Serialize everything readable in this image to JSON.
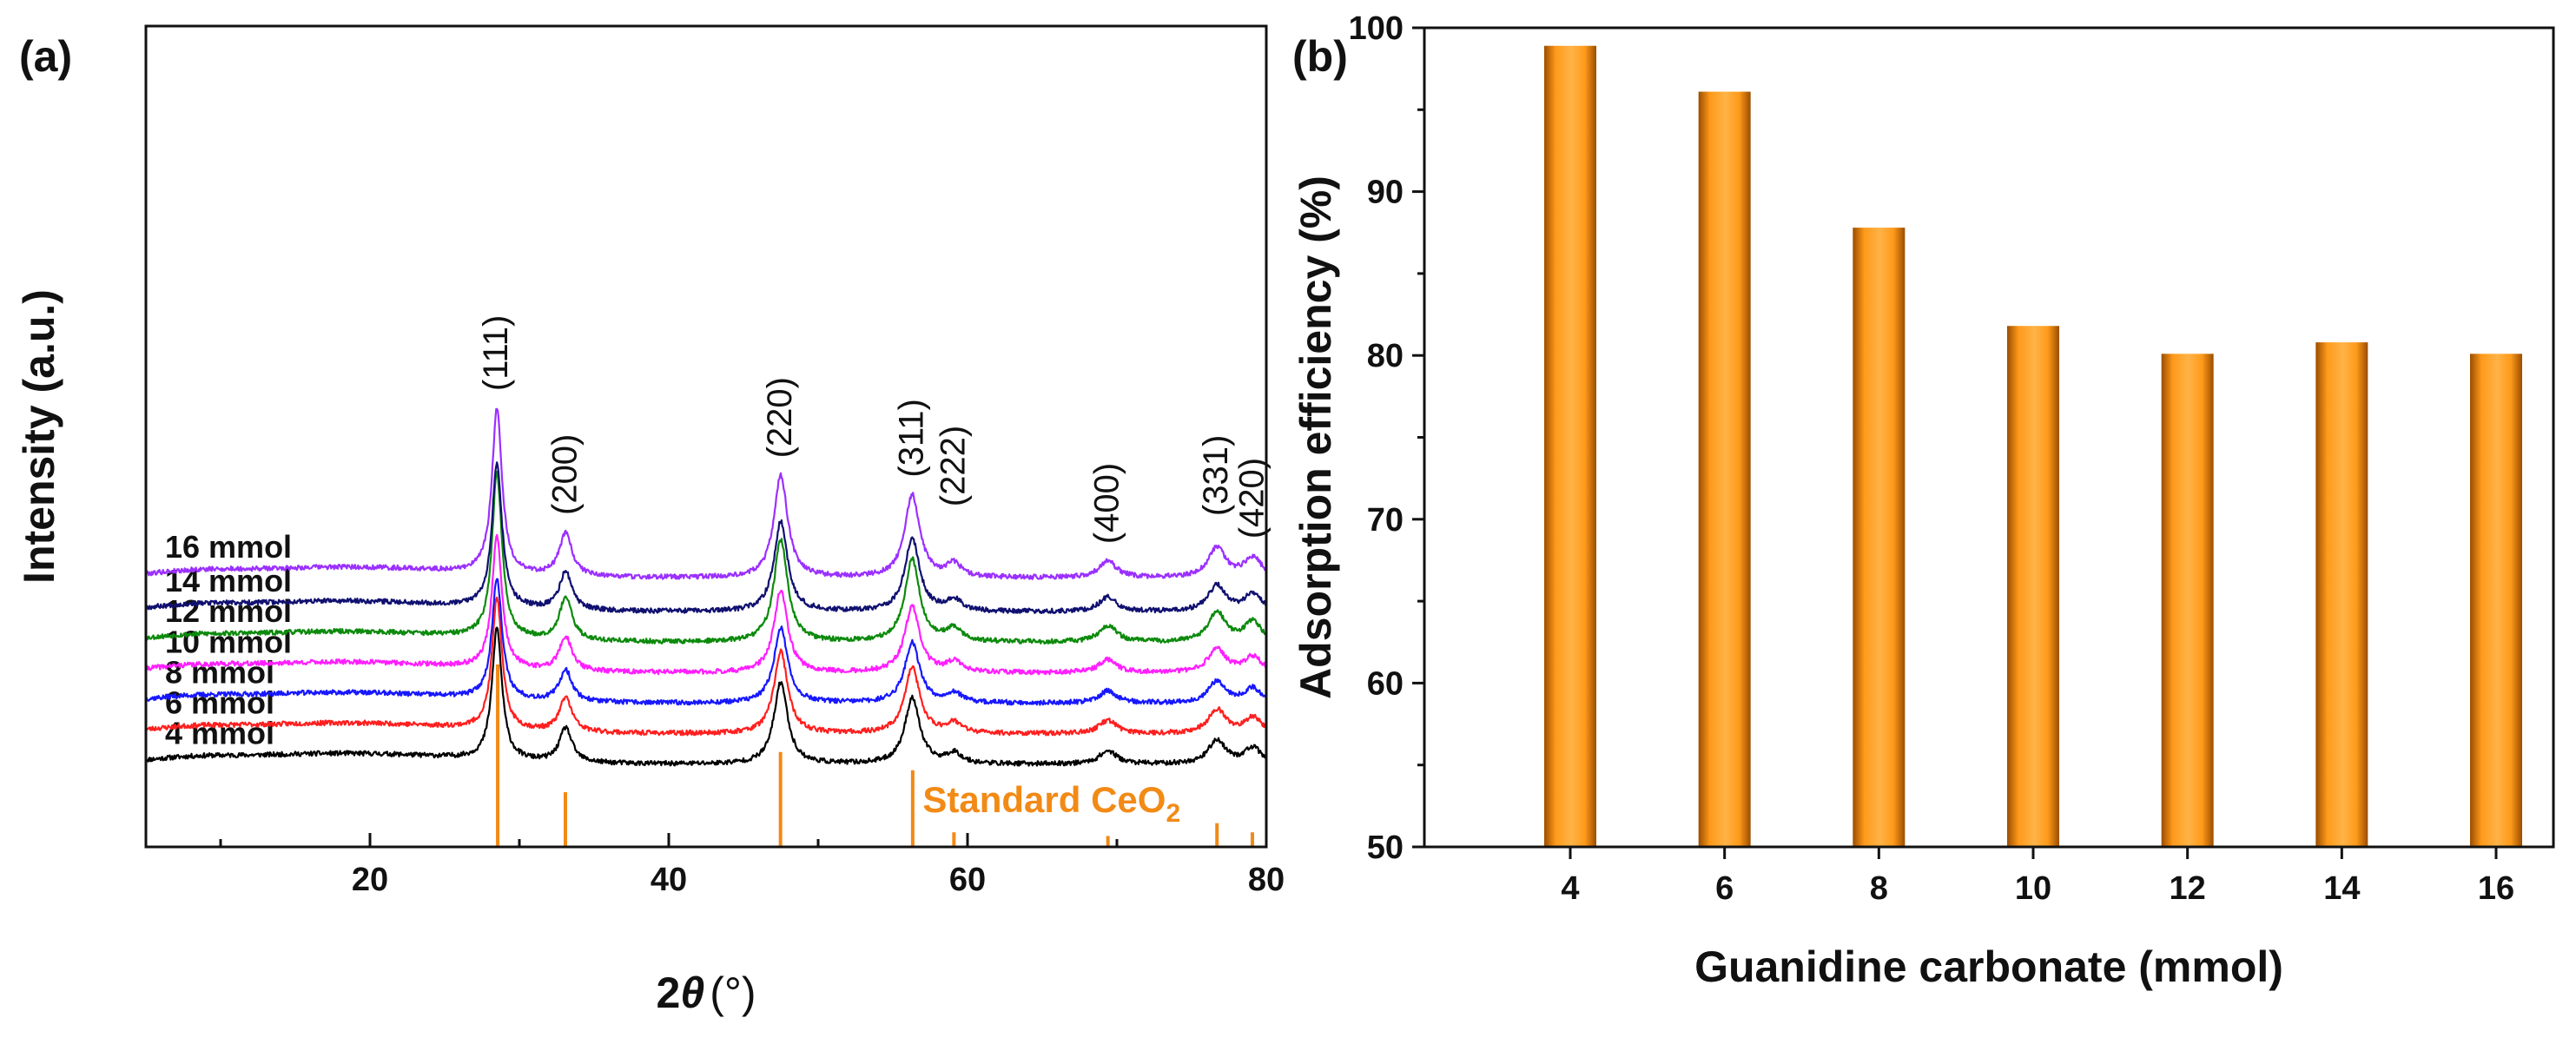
{
  "colors": {
    "axis": "#111111",
    "standard": "#f28a16",
    "bar_edge": "#9a4d00",
    "bar_mid": "#ff9a1a"
  },
  "chart_data": [
    {
      "panel": "(a)",
      "type": "line",
      "xlabel_main": "2",
      "xlabel_theta": "θ",
      "xlabel_unit": "(°)",
      "ylabel": "Intensity (a.u.)",
      "xlim": [
        5,
        80
      ],
      "x_major_ticks": [
        20,
        40,
        60,
        80
      ],
      "x_minor_ticks": [
        10,
        30,
        50,
        70
      ],
      "y_ticks_shown": false,
      "series": [
        {
          "name": "4 mmol",
          "label": "4 mmol",
          "color": "#000000",
          "baseline": 0,
          "scale": 1.0,
          "seed": 11
        },
        {
          "name": "6 mmol",
          "label": "6 mmol",
          "color": "#ff1f1f",
          "baseline": 0.45,
          "scale": 1.0,
          "seed": 23
        },
        {
          "name": "8 mmol",
          "label": "8 mmol",
          "color": "#1717ff",
          "baseline": 0.9,
          "scale": 0.92,
          "seed": 37
        },
        {
          "name": "10 mmol",
          "label": "10 mmol",
          "color": "#ff1fff",
          "baseline": 1.35,
          "scale": 1.0,
          "seed": 41
        },
        {
          "name": "12 mmol",
          "label": "12 mmol",
          "color": "#0c8a0c",
          "baseline": 1.8,
          "scale": 1.25,
          "seed": 53
        },
        {
          "name": "14 mmol",
          "label": "14 mmol",
          "color": "#101070",
          "baseline": 2.25,
          "scale": 1.1,
          "seed": 67
        },
        {
          "name": "16 mmol",
          "label": "16 mmol",
          "color": "#9b30ff",
          "baseline": 2.75,
          "scale": 1.25,
          "seed": 79
        }
      ],
      "peaks": [
        {
          "hkl": "(111)",
          "two_theta": 28.5,
          "height": 1.0,
          "width": 0.4
        },
        {
          "hkl": "(200)",
          "two_theta": 33.1,
          "height": 0.26,
          "width": 0.5
        },
        {
          "hkl": "(220)",
          "two_theta": 47.5,
          "height": 0.62,
          "width": 0.55
        },
        {
          "hkl": "(311)",
          "two_theta": 56.3,
          "height": 0.5,
          "width": 0.6
        },
        {
          "hkl": "(222)",
          "two_theta": 59.1,
          "height": 0.08,
          "width": 0.6
        },
        {
          "hkl": "(400)",
          "two_theta": 69.4,
          "height": 0.1,
          "width": 0.7
        },
        {
          "hkl": "(331)",
          "two_theta": 76.7,
          "height": 0.18,
          "width": 0.7
        },
        {
          "hkl": "(420)",
          "two_theta": 79.1,
          "height": 0.12,
          "width": 0.7
        }
      ],
      "standard_label_main": "Standard CeO",
      "standard_label_sub": "2",
      "standard_lines": [
        {
          "two_theta": 28.55,
          "intensity": 1.0
        },
        {
          "two_theta": 33.08,
          "intensity": 0.3
        },
        {
          "two_theta": 47.48,
          "intensity": 0.52
        },
        {
          "two_theta": 56.33,
          "intensity": 0.42
        },
        {
          "two_theta": 59.09,
          "intensity": 0.08
        },
        {
          "two_theta": 69.4,
          "intensity": 0.06
        },
        {
          "two_theta": 76.7,
          "intensity": 0.13
        },
        {
          "two_theta": 79.07,
          "intensity": 0.08
        }
      ]
    },
    {
      "panel": "(b)",
      "type": "bar",
      "xlabel": "Guanidine carbonate (mmol)",
      "ylabel": "Adsorption efficiency (%)",
      "categories": [
        "4",
        "6",
        "8",
        "10",
        "12",
        "14",
        "16"
      ],
      "values": [
        98.9,
        96.1,
        87.8,
        81.8,
        80.1,
        80.8,
        80.1
      ],
      "ylim": [
        50,
        100
      ],
      "y_ticks": [
        50,
        60,
        70,
        80,
        90,
        100
      ]
    }
  ]
}
